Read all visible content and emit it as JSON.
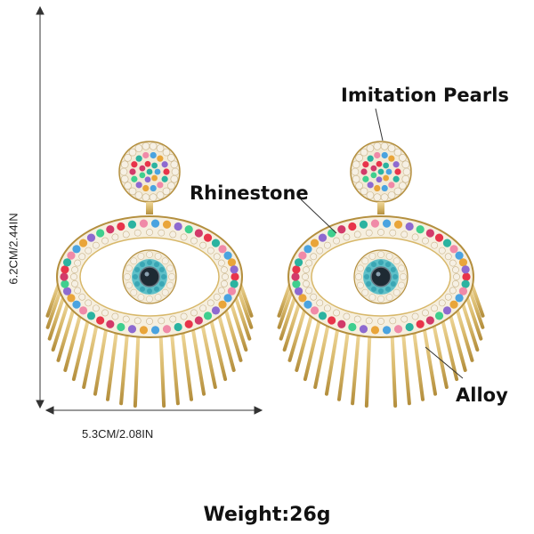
{
  "callouts": {
    "pearls": "Imitation Pearls",
    "rhinestone": "Rhinestone",
    "alloy": "Alloy"
  },
  "dimensions": {
    "height": "6.2CM/2.44IN",
    "width": "5.3CM/2.08IN"
  },
  "weight": "Weight:26g",
  "colors": {
    "gold": "#d8b86a",
    "gold_dark": "#b48f3e",
    "pearl": "#f6f0e4",
    "pupil": "#1e2a33",
    "iris": "#5fc0c8",
    "stones": [
      "#e8344a",
      "#2bb3a0",
      "#f08aa8",
      "#4aa3e0",
      "#e9a53a",
      "#8e6ad0",
      "#3fcf8e",
      "#d23a6a"
    ]
  }
}
